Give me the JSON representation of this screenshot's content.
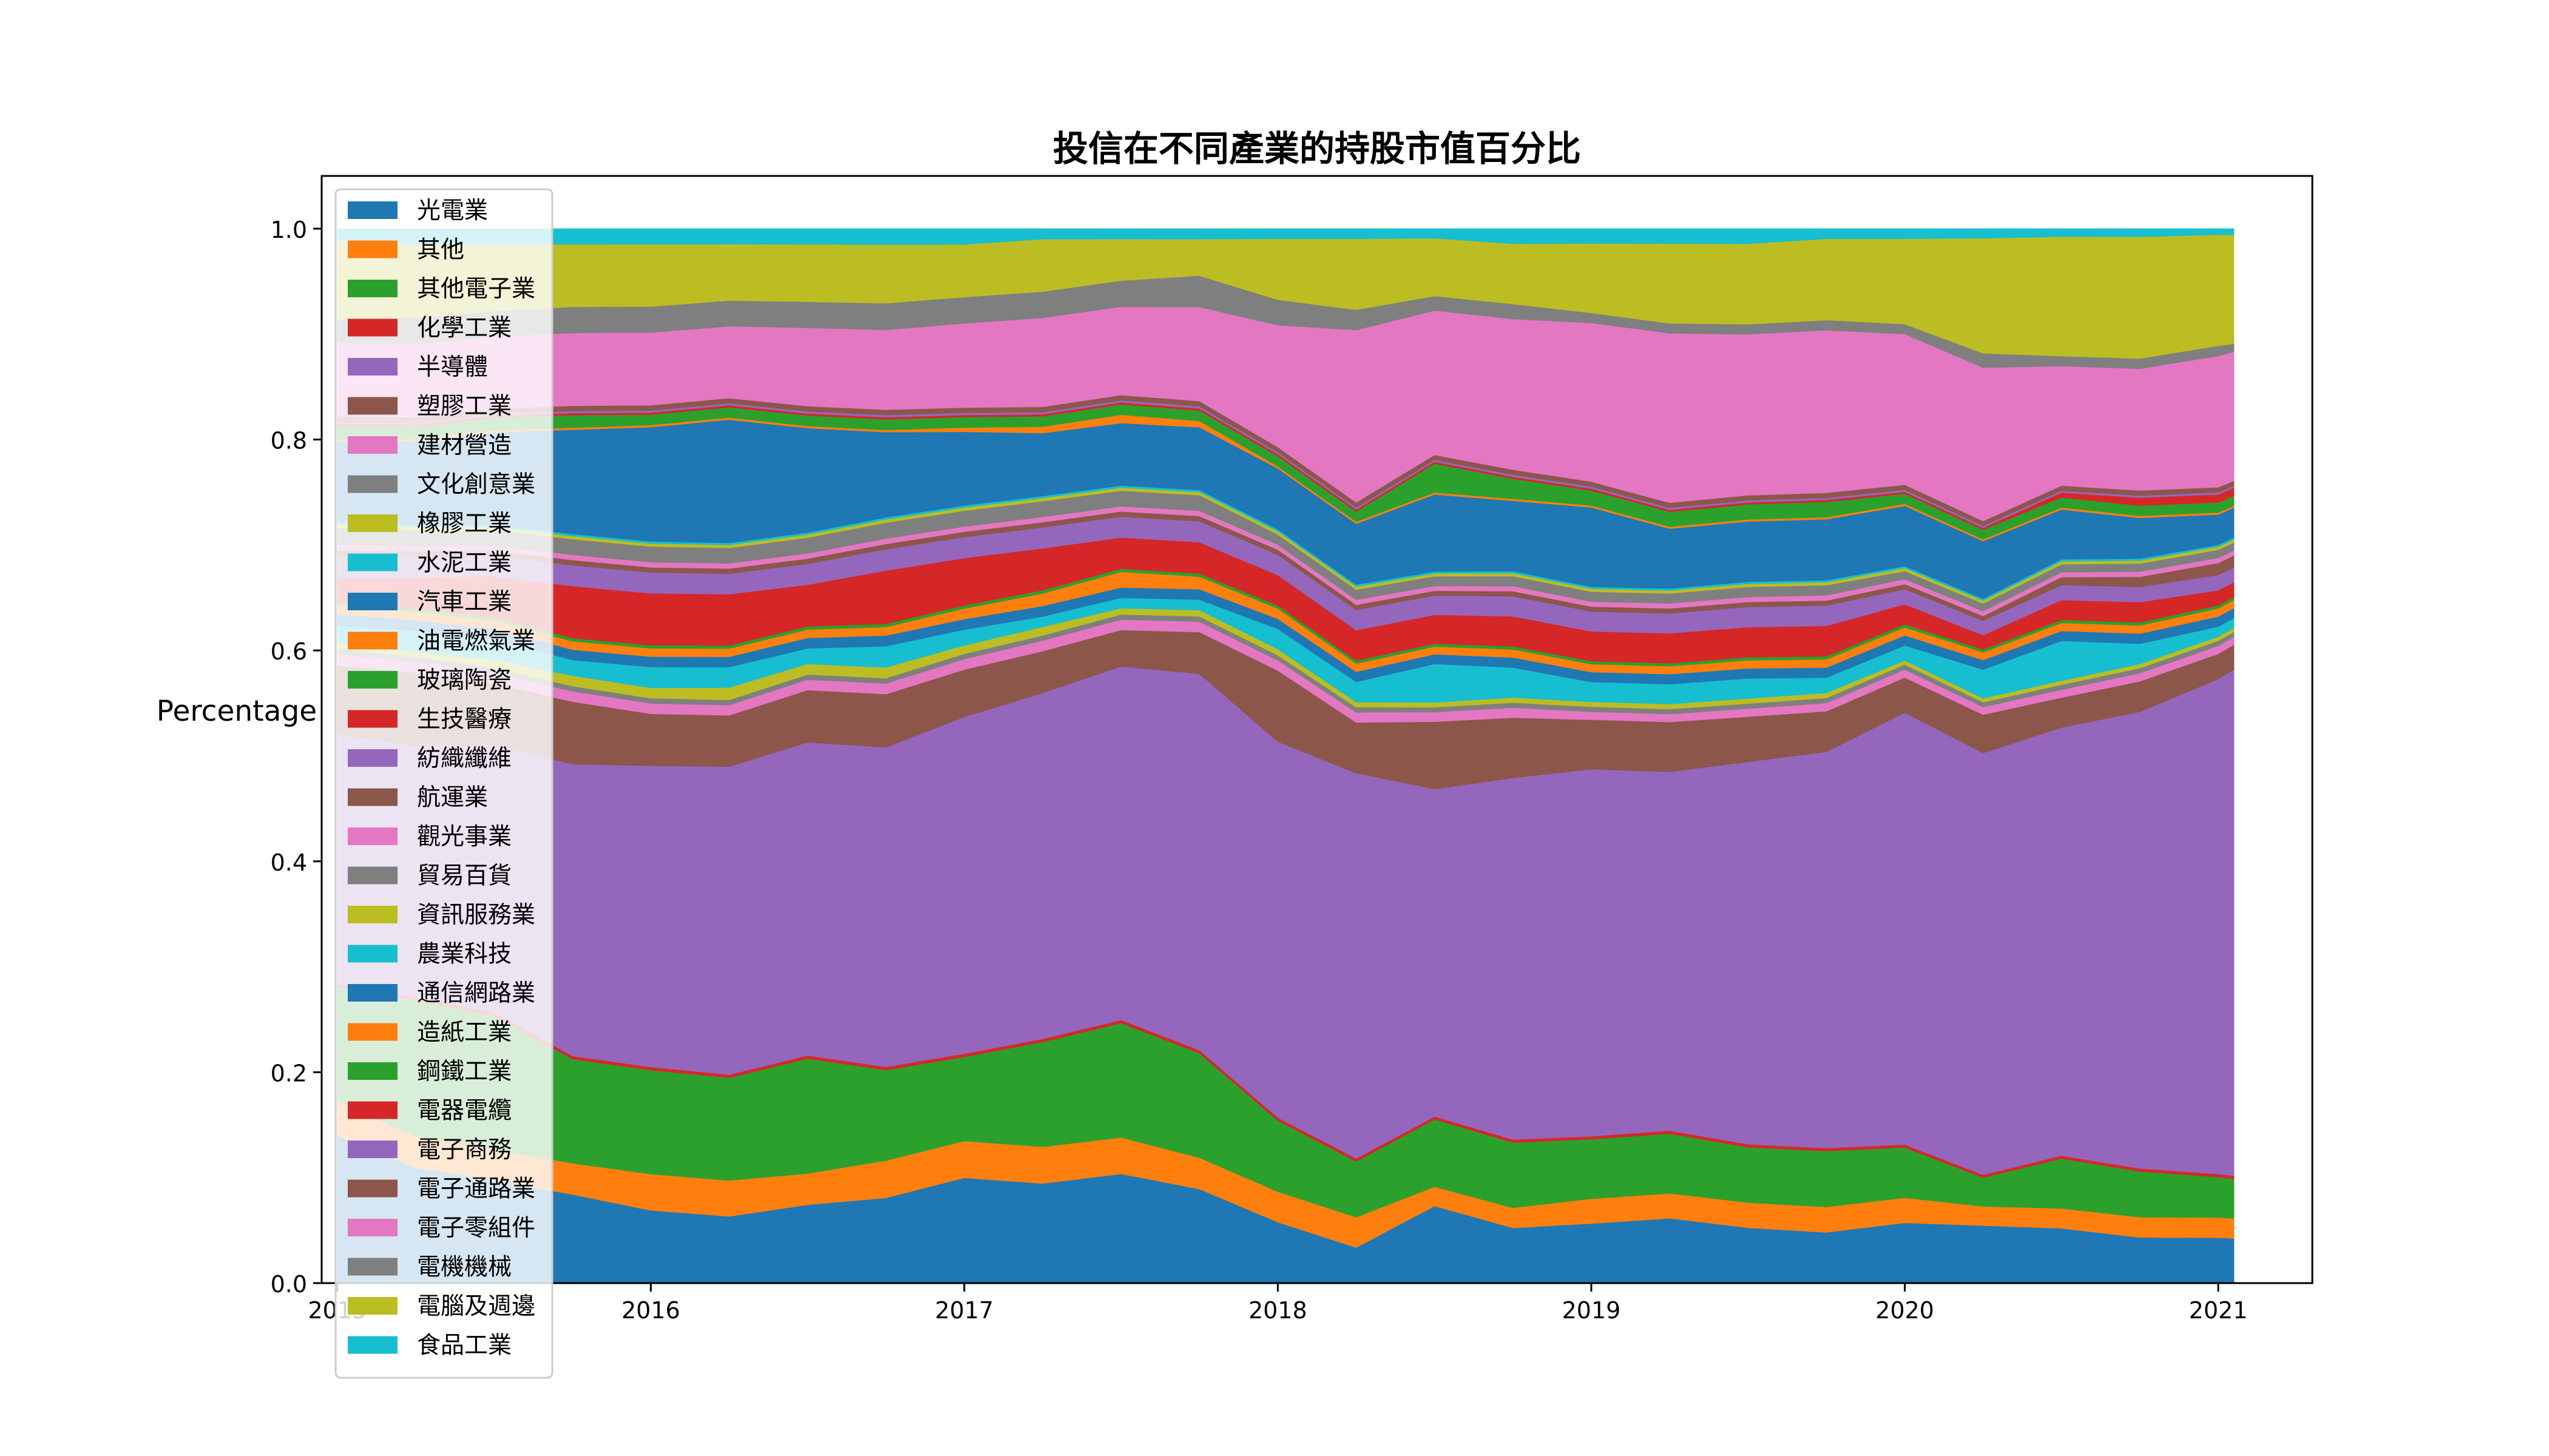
{
  "chart_data": {
    "type": "area",
    "stacked": true,
    "normalized": true,
    "title": "投信在不同產業的持股市值百分比",
    "xlabel": "",
    "ylabel": "Percentage",
    "ylim": [
      0,
      1.05
    ],
    "xlim": [
      2014.95,
      2021.3
    ],
    "yticks": [
      "0.0",
      "0.2",
      "0.4",
      "0.6",
      "0.8",
      "1.0"
    ],
    "xticks": [
      {
        "value": 2015,
        "label": "2015"
      },
      {
        "value": 2016,
        "label": "2016"
      },
      {
        "value": 2017,
        "label": "2017"
      },
      {
        "value": 2018,
        "label": "2018"
      },
      {
        "value": 2019,
        "label": "2019"
      },
      {
        "value": 2020,
        "label": "2020"
      },
      {
        "value": 2021,
        "label": "2021"
      }
    ],
    "grid": false,
    "legend": "upper-left",
    "x": [
      2015.0,
      2015.25,
      2015.5,
      2015.75,
      2016.0,
      2016.25,
      2016.5,
      2016.75,
      2017.0,
      2017.25,
      2017.5,
      2017.75,
      2018.0,
      2018.25,
      2018.5,
      2018.75,
      2019.0,
      2019.25,
      2019.5,
      2019.75,
      2020.0,
      2020.25,
      2020.5,
      2020.75,
      2021.0,
      2021.05
    ],
    "series": [
      {
        "name": "光電業",
        "color": "#1f77b4",
        "values": [
          0.13,
          0.11,
          0.1,
          0.085,
          0.07,
          0.065,
          0.075,
          0.08,
          0.1,
          0.095,
          0.105,
          0.09,
          0.06,
          0.035,
          0.08,
          0.055,
          0.06,
          0.065,
          0.055,
          0.05,
          0.06,
          0.06,
          0.055,
          0.045,
          0.045,
          0.045
        ]
      },
      {
        "name": "其他",
        "color": "#ff7f0e",
        "values": [
          0.03,
          0.03,
          0.03,
          0.03,
          0.035,
          0.035,
          0.03,
          0.035,
          0.035,
          0.035,
          0.035,
          0.03,
          0.03,
          0.03,
          0.02,
          0.02,
          0.025,
          0.025,
          0.025,
          0.025,
          0.025,
          0.02,
          0.02,
          0.02,
          0.02,
          0.02
        ]
      },
      {
        "name": "其他電子業",
        "color": "#2ca02c",
        "values": [
          0.1,
          0.13,
          0.13,
          0.1,
          0.1,
          0.1,
          0.11,
          0.085,
          0.08,
          0.1,
          0.11,
          0.1,
          0.07,
          0.055,
          0.07,
          0.065,
          0.06,
          0.06,
          0.055,
          0.055,
          0.05,
          0.03,
          0.05,
          0.045,
          0.04,
          0.04
        ]
      },
      {
        "name": "化學工業",
        "color": "#d62728",
        "values": [
          0.003,
          0.003,
          0.003,
          0.003,
          0.003,
          0.003,
          0.003,
          0.003,
          0.003,
          0.003,
          0.003,
          0.003,
          0.003,
          0.003,
          0.003,
          0.003,
          0.003,
          0.003,
          0.003,
          0.003,
          0.003,
          0.003,
          0.003,
          0.003,
          0.003,
          0.003
        ]
      },
      {
        "name": "半導體",
        "color": "#9467bd",
        "values": [
          0.22,
          0.24,
          0.26,
          0.28,
          0.29,
          0.3,
          0.3,
          0.3,
          0.32,
          0.33,
          0.34,
          0.36,
          0.37,
          0.38,
          0.34,
          0.36,
          0.37,
          0.36,
          0.38,
          0.39,
          0.43,
          0.44,
          0.43,
          0.45,
          0.49,
          0.51
        ]
      },
      {
        "name": "塑膠工業",
        "color": "#8c564b",
        "values": [
          0.06,
          0.07,
          0.06,
          0.06,
          0.05,
          0.05,
          0.05,
          0.05,
          0.045,
          0.04,
          0.035,
          0.04,
          0.07,
          0.05,
          0.07,
          0.06,
          0.05,
          0.05,
          0.045,
          0.04,
          0.035,
          0.04,
          0.03,
          0.03,
          0.025,
          0.025
        ]
      },
      {
        "name": "建材營造",
        "color": "#e377c2",
        "values": [
          0.01,
          0.01,
          0.01,
          0.01,
          0.01,
          0.01,
          0.01,
          0.01,
          0.01,
          0.01,
          0.01,
          0.01,
          0.01,
          0.01,
          0.01,
          0.01,
          0.008,
          0.008,
          0.008,
          0.008,
          0.008,
          0.008,
          0.008,
          0.008,
          0.008,
          0.008
        ]
      },
      {
        "name": "文化創意業",
        "color": "#7f7f7f",
        "values": [
          0.005,
          0.005,
          0.005,
          0.005,
          0.005,
          0.005,
          0.005,
          0.005,
          0.005,
          0.005,
          0.005,
          0.005,
          0.005,
          0.005,
          0.005,
          0.005,
          0.005,
          0.005,
          0.005,
          0.005,
          0.005,
          0.005,
          0.005,
          0.005,
          0.005,
          0.005
        ]
      },
      {
        "name": "橡膠工業",
        "color": "#bcbd22",
        "values": [
          0.005,
          0.005,
          0.008,
          0.01,
          0.01,
          0.012,
          0.01,
          0.01,
          0.008,
          0.008,
          0.006,
          0.006,
          0.006,
          0.005,
          0.005,
          0.005,
          0.005,
          0.005,
          0.005,
          0.005,
          0.004,
          0.004,
          0.004,
          0.004,
          0.004,
          0.004
        ]
      },
      {
        "name": "水泥工業",
        "color": "#17becf",
        "values": [
          0.015,
          0.02,
          0.02,
          0.015,
          0.02,
          0.02,
          0.015,
          0.02,
          0.015,
          0.01,
          0.01,
          0.01,
          0.02,
          0.02,
          0.04,
          0.03,
          0.02,
          0.02,
          0.02,
          0.015,
          0.015,
          0.03,
          0.04,
          0.02,
          0.01,
          0.01
        ]
      },
      {
        "name": "汽車工業",
        "color": "#1f77b4",
        "values": [
          0.01,
          0.01,
          0.01,
          0.01,
          0.01,
          0.01,
          0.01,
          0.01,
          0.01,
          0.01,
          0.01,
          0.01,
          0.01,
          0.01,
          0.01,
          0.01,
          0.01,
          0.01,
          0.01,
          0.01,
          0.01,
          0.01,
          0.01,
          0.01,
          0.01,
          0.01
        ]
      },
      {
        "name": "油電燃氣業",
        "color": "#ff7f0e",
        "values": [
          0.008,
          0.008,
          0.008,
          0.008,
          0.008,
          0.008,
          0.008,
          0.008,
          0.01,
          0.012,
          0.015,
          0.012,
          0.01,
          0.008,
          0.008,
          0.008,
          0.008,
          0.008,
          0.008,
          0.008,
          0.008,
          0.008,
          0.008,
          0.008,
          0.008,
          0.008
        ]
      },
      {
        "name": "玻璃陶瓷",
        "color": "#2ca02c",
        "values": [
          0.003,
          0.003,
          0.003,
          0.003,
          0.003,
          0.003,
          0.003,
          0.003,
          0.003,
          0.003,
          0.003,
          0.003,
          0.003,
          0.003,
          0.003,
          0.003,
          0.003,
          0.003,
          0.003,
          0.003,
          0.003,
          0.003,
          0.003,
          0.003,
          0.003,
          0.003
        ]
      },
      {
        "name": "生技醫療",
        "color": "#d62728",
        "values": [
          0.02,
          0.03,
          0.04,
          0.05,
          0.05,
          0.05,
          0.04,
          0.05,
          0.045,
          0.04,
          0.03,
          0.03,
          0.03,
          0.03,
          0.03,
          0.03,
          0.03,
          0.03,
          0.03,
          0.03,
          0.02,
          0.015,
          0.02,
          0.02,
          0.015,
          0.015
        ]
      },
      {
        "name": "紡織纖維",
        "color": "#9467bd",
        "values": [
          0.02,
          0.02,
          0.02,
          0.02,
          0.02,
          0.02,
          0.02,
          0.02,
          0.02,
          0.02,
          0.02,
          0.02,
          0.02,
          0.02,
          0.02,
          0.02,
          0.02,
          0.02,
          0.02,
          0.02,
          0.015,
          0.015,
          0.015,
          0.015,
          0.015,
          0.015
        ]
      },
      {
        "name": "航運業",
        "color": "#8c564b",
        "values": [
          0.005,
          0.005,
          0.005,
          0.005,
          0.005,
          0.005,
          0.005,
          0.005,
          0.005,
          0.005,
          0.005,
          0.005,
          0.005,
          0.005,
          0.005,
          0.005,
          0.005,
          0.005,
          0.005,
          0.005,
          0.005,
          0.005,
          0.008,
          0.01,
          0.012,
          0.012
        ]
      },
      {
        "name": "觀光事業",
        "color": "#e377c2",
        "values": [
          0.005,
          0.005,
          0.005,
          0.005,
          0.005,
          0.005,
          0.005,
          0.005,
          0.005,
          0.005,
          0.005,
          0.005,
          0.005,
          0.005,
          0.005,
          0.005,
          0.005,
          0.005,
          0.005,
          0.005,
          0.005,
          0.005,
          0.005,
          0.005,
          0.005,
          0.005
        ]
      },
      {
        "name": "貿易百貨",
        "color": "#7f7f7f",
        "values": [
          0.015,
          0.015,
          0.015,
          0.015,
          0.015,
          0.015,
          0.015,
          0.015,
          0.015,
          0.015,
          0.015,
          0.015,
          0.01,
          0.01,
          0.01,
          0.01,
          0.01,
          0.01,
          0.01,
          0.01,
          0.008,
          0.008,
          0.008,
          0.008,
          0.008,
          0.008
        ]
      },
      {
        "name": "資訊服務業",
        "color": "#bcbd22",
        "values": [
          0.003,
          0.003,
          0.003,
          0.003,
          0.003,
          0.003,
          0.003,
          0.003,
          0.003,
          0.003,
          0.003,
          0.003,
          0.003,
          0.003,
          0.003,
          0.003,
          0.003,
          0.003,
          0.003,
          0.003,
          0.003,
          0.003,
          0.003,
          0.003,
          0.003,
          0.003
        ]
      },
      {
        "name": "農業科技",
        "color": "#17becf",
        "values": [
          0.002,
          0.002,
          0.002,
          0.002,
          0.002,
          0.002,
          0.002,
          0.002,
          0.002,
          0.002,
          0.002,
          0.002,
          0.002,
          0.002,
          0.002,
          0.002,
          0.002,
          0.002,
          0.002,
          0.002,
          0.002,
          0.002,
          0.002,
          0.002,
          0.002,
          0.002
        ]
      },
      {
        "name": "通信網路業",
        "color": "#1f77b4",
        "values": [
          0.07,
          0.08,
          0.09,
          0.1,
          0.11,
          0.12,
          0.1,
          0.08,
          0.07,
          0.06,
          0.06,
          0.06,
          0.06,
          0.06,
          0.08,
          0.07,
          0.08,
          0.06,
          0.06,
          0.06,
          0.06,
          0.06,
          0.05,
          0.04,
          0.03,
          0.03
        ]
      },
      {
        "name": "造紙工業",
        "color": "#ff7f0e",
        "values": [
          0.002,
          0.002,
          0.002,
          0.002,
          0.002,
          0.002,
          0.002,
          0.002,
          0.004,
          0.006,
          0.008,
          0.006,
          0.002,
          0.002,
          0.002,
          0.002,
          0.002,
          0.002,
          0.002,
          0.002,
          0.002,
          0.002,
          0.002,
          0.002,
          0.002,
          0.002
        ]
      },
      {
        "name": "鋼鐵工業",
        "color": "#2ca02c",
        "values": [
          0.012,
          0.012,
          0.012,
          0.012,
          0.01,
          0.01,
          0.01,
          0.01,
          0.01,
          0.01,
          0.01,
          0.01,
          0.01,
          0.01,
          0.03,
          0.02,
          0.015,
          0.015,
          0.015,
          0.015,
          0.01,
          0.01,
          0.01,
          0.01,
          0.01,
          0.01
        ]
      },
      {
        "name": "電器電纜",
        "color": "#d62728",
        "values": [
          0.002,
          0.002,
          0.002,
          0.002,
          0.002,
          0.002,
          0.002,
          0.002,
          0.002,
          0.002,
          0.002,
          0.002,
          0.002,
          0.002,
          0.002,
          0.002,
          0.002,
          0.002,
          0.002,
          0.002,
          0.002,
          0.002,
          0.005,
          0.008,
          0.008,
          0.008
        ]
      },
      {
        "name": "電子商務",
        "color": "#9467bd",
        "values": [
          0.002,
          0.002,
          0.002,
          0.002,
          0.002,
          0.002,
          0.002,
          0.002,
          0.002,
          0.002,
          0.002,
          0.002,
          0.002,
          0.002,
          0.002,
          0.002,
          0.002,
          0.002,
          0.002,
          0.002,
          0.002,
          0.002,
          0.002,
          0.002,
          0.002,
          0.002
        ]
      },
      {
        "name": "電子通路業",
        "color": "#8c564b",
        "values": [
          0.005,
          0.005,
          0.005,
          0.005,
          0.005,
          0.005,
          0.005,
          0.005,
          0.005,
          0.005,
          0.005,
          0.005,
          0.005,
          0.005,
          0.005,
          0.005,
          0.005,
          0.005,
          0.005,
          0.005,
          0.005,
          0.005,
          0.005,
          0.005,
          0.005,
          0.005
        ]
      },
      {
        "name": "電子零組件",
        "color": "#e377c2",
        "values": [
          0.065,
          0.07,
          0.07,
          0.07,
          0.07,
          0.07,
          0.075,
          0.075,
          0.08,
          0.085,
          0.085,
          0.09,
          0.12,
          0.17,
          0.15,
          0.15,
          0.16,
          0.17,
          0.16,
          0.16,
          0.15,
          0.16,
          0.12,
          0.12,
          0.13,
          0.13
        ]
      },
      {
        "name": "電機機械",
        "color": "#7f7f7f",
        "values": [
          0.02,
          0.025,
          0.025,
          0.025,
          0.025,
          0.025,
          0.025,
          0.025,
          0.025,
          0.025,
          0.025,
          0.03,
          0.025,
          0.02,
          0.015,
          0.015,
          0.01,
          0.01,
          0.01,
          0.01,
          0.01,
          0.015,
          0.01,
          0.01,
          0.01,
          0.008
        ]
      },
      {
        "name": "電腦及週邊",
        "color": "#bcbd22",
        "values": [
          0.07,
          0.07,
          0.065,
          0.06,
          0.06,
          0.055,
          0.055,
          0.055,
          0.05,
          0.05,
          0.04,
          0.035,
          0.06,
          0.07,
          0.06,
          0.06,
          0.07,
          0.08,
          0.08,
          0.08,
          0.085,
          0.12,
          0.12,
          0.12,
          0.11,
          0.11
        ]
      },
      {
        "name": "食品工業",
        "color": "#17becf",
        "values": [
          0.01,
          0.015,
          0.015,
          0.015,
          0.015,
          0.015,
          0.015,
          0.015,
          0.015,
          0.01,
          0.01,
          0.01,
          0.01,
          0.01,
          0.01,
          0.015,
          0.015,
          0.015,
          0.015,
          0.01,
          0.01,
          0.01,
          0.008,
          0.008,
          0.006,
          0.006
        ]
      }
    ]
  }
}
